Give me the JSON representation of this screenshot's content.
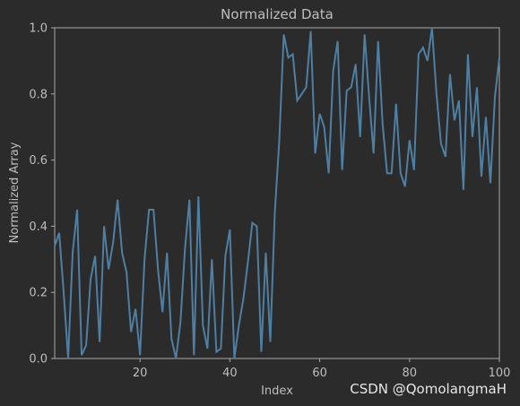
{
  "chart_data": {
    "type": "line",
    "title": "Normalized Data",
    "xlabel": "Index",
    "ylabel": "Normalized Array",
    "xlim": [
      1,
      100
    ],
    "ylim": [
      0,
      1.0
    ],
    "x_ticks": [
      20,
      40,
      60,
      80,
      100
    ],
    "y_ticks": [
      0.0,
      0.2,
      0.4,
      0.6,
      0.8,
      1.0
    ],
    "y_tick_labels": [
      "0.0",
      "0.2",
      "0.4",
      "0.6",
      "0.8",
      "1.0"
    ],
    "grid": false,
    "line_color": "#4f7fa3",
    "x": [
      1,
      2,
      3,
      4,
      5,
      6,
      7,
      8,
      9,
      10,
      11,
      12,
      13,
      14,
      15,
      16,
      17,
      18,
      19,
      20,
      21,
      22,
      23,
      24,
      25,
      26,
      27,
      28,
      29,
      30,
      31,
      32,
      33,
      34,
      35,
      36,
      37,
      38,
      39,
      40,
      41,
      42,
      43,
      44,
      45,
      46,
      47,
      48,
      49,
      50,
      51,
      52,
      53,
      54,
      55,
      56,
      57,
      58,
      59,
      60,
      61,
      62,
      63,
      64,
      65,
      66,
      67,
      68,
      69,
      70,
      71,
      72,
      73,
      74,
      75,
      76,
      77,
      78,
      79,
      80,
      81,
      82,
      83,
      84,
      85,
      86,
      87,
      88,
      89,
      90,
      91,
      92,
      93,
      94,
      95,
      96,
      97,
      98,
      99,
      100
    ],
    "series": [
      {
        "values": [
          0.34,
          0.38,
          0.2,
          0.0,
          0.32,
          0.45,
          0.01,
          0.04,
          0.24,
          0.31,
          0.05,
          0.4,
          0.27,
          0.35,
          0.48,
          0.32,
          0.26,
          0.08,
          0.15,
          0.01,
          0.3,
          0.45,
          0.45,
          0.27,
          0.14,
          0.32,
          0.06,
          0.0,
          0.11,
          0.33,
          0.48,
          0.01,
          0.49,
          0.1,
          0.03,
          0.3,
          0.02,
          0.03,
          0.31,
          0.39,
          0.0,
          0.1,
          0.18,
          0.29,
          0.41,
          0.4,
          0.02,
          0.32,
          0.05,
          0.44,
          0.66,
          0.98,
          0.91,
          0.92,
          0.78,
          0.8,
          0.82,
          0.99,
          0.62,
          0.74,
          0.7,
          0.56,
          0.87,
          0.96,
          0.57,
          0.81,
          0.82,
          0.89,
          0.67,
          0.98,
          0.79,
          0.62,
          0.96,
          0.71,
          0.56,
          0.56,
          0.77,
          0.56,
          0.52,
          0.66,
          0.57,
          0.92,
          0.94,
          0.9,
          1.0,
          0.8,
          0.65,
          0.61,
          0.86,
          0.72,
          0.78,
          0.51,
          0.92,
          0.67,
          0.82,
          0.55,
          0.73,
          0.53,
          0.79,
          0.91
        ]
      }
    ]
  },
  "watermark": "CSDN @QomolangmaH"
}
